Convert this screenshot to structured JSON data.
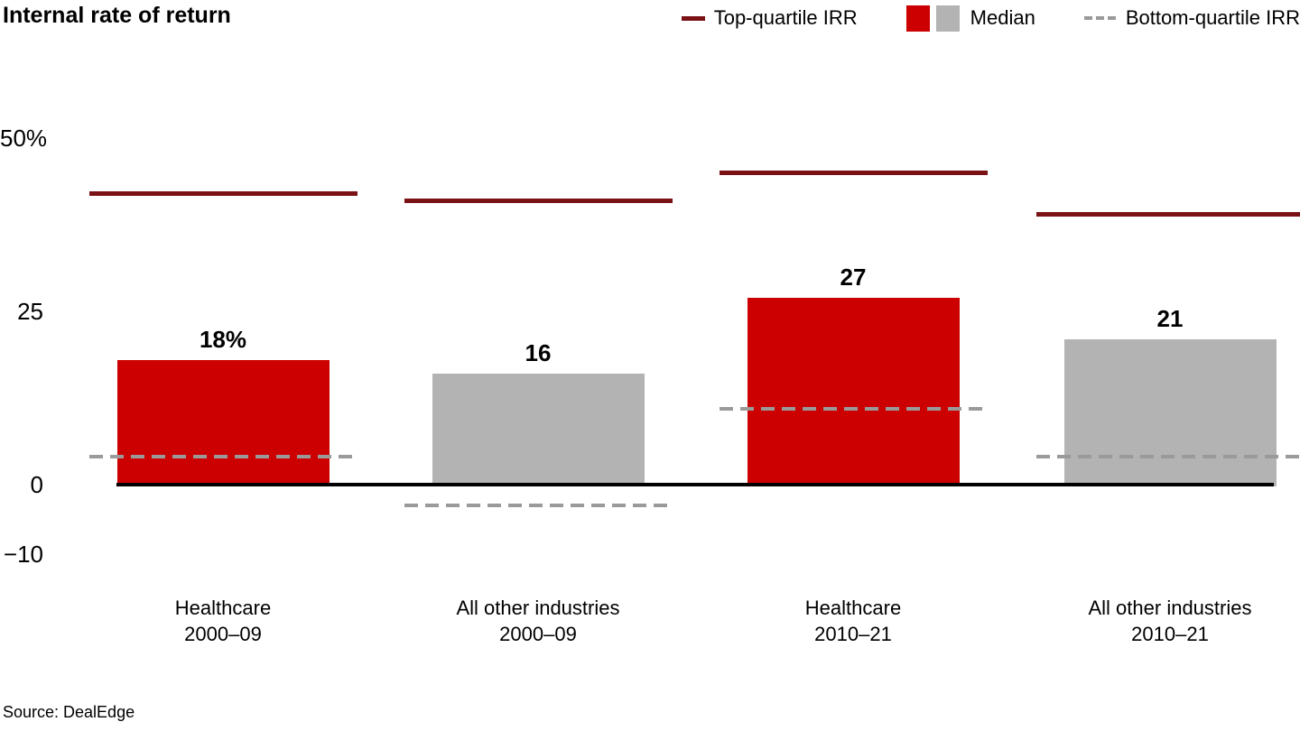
{
  "title": "Internal rate of return",
  "source": "Source: DealEdge",
  "legend": {
    "top_quartile": {
      "label": "Top-quartile IRR",
      "color": "#7a1114"
    },
    "median": {
      "label": "Median",
      "colors": [
        "#cc0000",
        "#b3b3b3"
      ]
    },
    "bottom_quartile": {
      "label": "Bottom-quartile IRR",
      "color": "#9a9a9a"
    }
  },
  "colors": {
    "median_healthcare": "#cc0000",
    "median_other": "#b3b3b3",
    "top_quartile_line": "#7a1114",
    "bottom_quartile_line": "#9a9a9a",
    "axis": "#000000"
  },
  "chart_data": {
    "type": "bar",
    "title": "Internal rate of return",
    "xlabel": "",
    "ylabel": "",
    "grid": false,
    "legend_position": "top-right",
    "ylim": [
      -14,
      55
    ],
    "yticks": [
      {
        "value": 50,
        "label": "50%"
      },
      {
        "value": 25,
        "label": "25"
      },
      {
        "value": 0,
        "label": "0"
      },
      {
        "value": -10,
        "label": "−10"
      }
    ],
    "categories": [
      [
        "Healthcare",
        "2000–09"
      ],
      [
        "All other industries",
        "2000–09"
      ],
      [
        "Healthcare",
        "2010–21"
      ],
      [
        "All other industries",
        "2010–21"
      ]
    ],
    "series": [
      {
        "name": "Median",
        "mark": "bar",
        "values": [
          18,
          16,
          27,
          21
        ],
        "value_labels": [
          "18%",
          "16",
          "27",
          "21"
        ],
        "bar_colors": [
          "#cc0000",
          "#b3b3b3",
          "#cc0000",
          "#b3b3b3"
        ]
      },
      {
        "name": "Top-quartile IRR",
        "mark": "solid-line-marker",
        "values": [
          42,
          41,
          45,
          39
        ],
        "color": "#7a1114"
      },
      {
        "name": "Bottom-quartile IRR",
        "mark": "dashed-line-marker",
        "values": [
          4,
          -3,
          11,
          4
        ],
        "color": "#9a9a9a"
      }
    ]
  }
}
